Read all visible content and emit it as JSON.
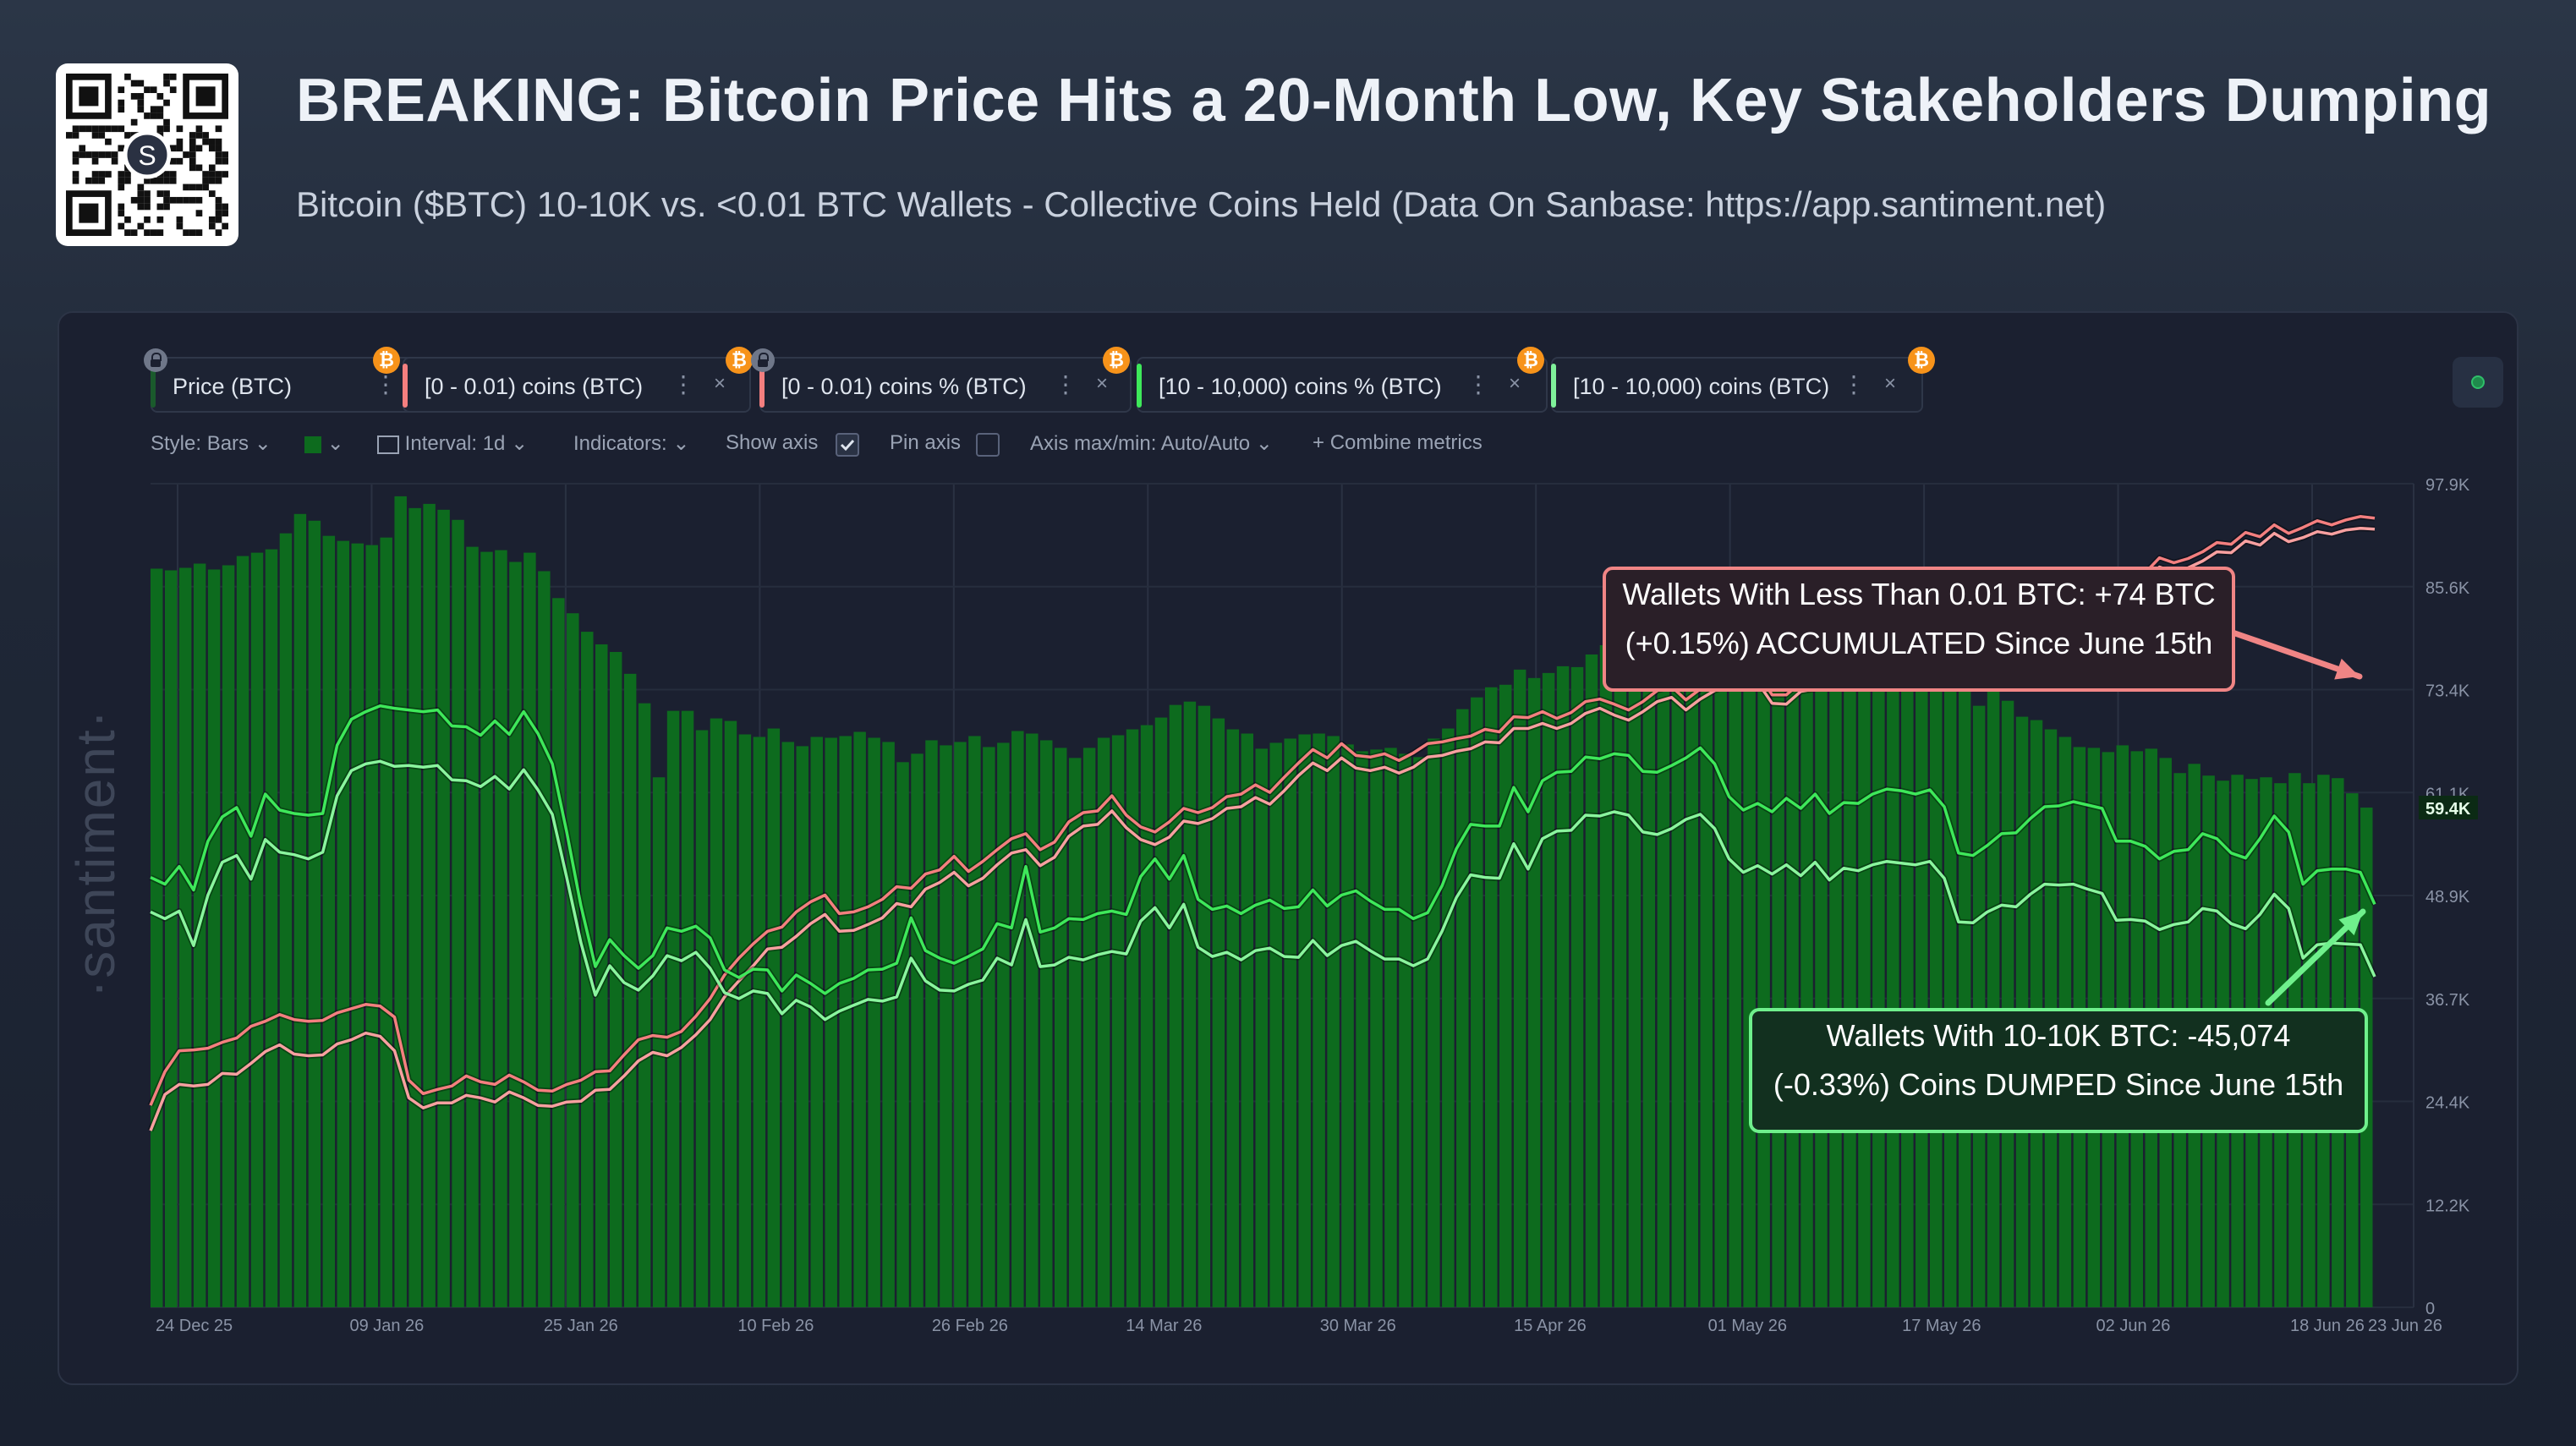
{
  "header": {
    "title": "BREAKING: Bitcoin Price Hits a 20-Month Low, Key Stakeholders Dumping",
    "subtitle": "Bitcoin ($BTC) 10-10K vs. <0.01 BTC Wallets - Collective Coins Held (Data On Sanbase: https://app.santiment.net)"
  },
  "qr_logo_letter": "S",
  "chips": [
    {
      "label": "Price (BTC)",
      "color": "#1a5a2c",
      "locked": true
    },
    {
      "label": "[0 - 0.01) coins (BTC)",
      "color": "#f47f7f",
      "locked": false
    },
    {
      "label": "[0 - 0.01) coins % (BTC)",
      "color": "#f47f7f",
      "locked": true
    },
    {
      "label": "[10 - 10,000) coins % (BTC)",
      "color": "#3ee85a",
      "locked": false
    },
    {
      "label": "[10 - 10,000) coins (BTC)",
      "color": "#7ff09a",
      "locked": false
    }
  ],
  "chip_icons": {
    "menu": "⋮",
    "close": "×",
    "btc": "₿"
  },
  "toolbar": {
    "style": "Style: Bars",
    "interval": "Interval: 1d",
    "indicators": "Indicators:",
    "show_axis": "Show axis",
    "show_axis_checked": true,
    "pin_axis": "Pin axis",
    "pin_axis_checked": false,
    "axis_maxmin": "Axis max/min: Auto/Auto",
    "combine": "Combine metrics",
    "caret": "⌄",
    "plus": "+"
  },
  "watermark": "·santiment·",
  "callouts": {
    "red": [
      "Wallets With Less Than 0.01 BTC: +74 BTC",
      "(+0.15%) ACCUMULATED Since June 15th"
    ],
    "green": [
      "Wallets With 10-10K BTC: -45,074",
      "(-0.33%) Coins DUMPED Since June 15th"
    ]
  },
  "chart_data": {
    "type": "bar",
    "x_ticks": [
      "24 Dec 25",
      "09 Jan 26",
      "25 Jan 26",
      "10 Feb 26",
      "26 Feb 26",
      "14 Mar 26",
      "30 Mar 26",
      "15 Apr 26",
      "01 May 26",
      "17 May 26",
      "02 Jun 26",
      "18 Jun 26",
      "23 Jun 26"
    ],
    "y_ticks": [
      "0",
      "12.2K",
      "24.4K",
      "36.7K",
      "48.9K",
      "61.1K",
      "73.4K",
      "85.6K",
      "97.9K"
    ],
    "ylim": [
      0,
      97900
    ],
    "current_price_label": "59.4K",
    "current_price": 59400,
    "grid": true,
    "series_colors": {
      "price": "#0d6b1e",
      "small_coins": "#f47f7f",
      "small_pct": "#f8a0a0",
      "whale_pct": "#3ee85a",
      "whale_coins": "#8af59e"
    },
    "price_values": [
      87800,
      87600,
      87900,
      88400,
      87700,
      88200,
      89300,
      89700,
      90100,
      92000,
      94300,
      93500,
      91700,
      91100,
      90800,
      90600,
      91500,
      96400,
      95000,
      95500,
      94800,
      93600,
      90400,
      89800,
      90000,
      88600,
      89700,
      87500,
      84300,
      82500,
      80300,
      78800,
      77900,
      75300,
      71800,
      63000,
      70900,
      70900,
      68600,
      70000,
      69700,
      68100,
      67800,
      68800,
      67200,
      66700,
      67800,
      67700,
      67900,
      68400,
      67700,
      67200,
      64800,
      65800,
      67400,
      66800,
      67200,
      67900,
      66600,
      67100,
      68500,
      68200,
      67400,
      66500,
      65300,
      66500,
      67700,
      68000,
      68700,
      69200,
      70100,
      71600,
      72000,
      71500,
      70000,
      68700,
      68200,
      66400,
      67100,
      67600,
      68100,
      68200,
      67900,
      66900,
      66100,
      66300,
      66500,
      65800,
      65400,
      67600,
      68800,
      71100,
      72500,
      73700,
      74000,
      75800,
      74800,
      75400,
      76200,
      76100,
      77600,
      78700,
      79700,
      80600,
      80200,
      79700,
      79000,
      79200,
      80300,
      81400,
      80800,
      80200,
      78800,
      77100,
      76900,
      77600,
      78600,
      77500,
      77900,
      76900,
      76400,
      75300,
      73800,
      74200,
      73600,
      73800,
      73700,
      71500,
      73200,
      72100,
      70200,
      69800,
      68700,
      67800,
      66600,
      66500,
      66000,
      66800,
      66100,
      66400,
      65300,
      63500,
      64600,
      63200,
      62600,
      63300,
      62800,
      63000,
      62300,
      63500,
      62300,
      63300,
      62900,
      61100,
      59400
    ],
    "small_coins_values": [
      24000,
      28000,
      30500,
      30600,
      30800,
      31500,
      32000,
      33400,
      34000,
      34800,
      34200,
      34000,
      34100,
      35000,
      35500,
      36000,
      35800,
      34500,
      27000,
      25400,
      25900,
      26300,
      27500,
      26800,
      26500,
      27600,
      26800,
      25800,
      25700,
      26500,
      27000,
      28000,
      28100,
      30000,
      31800,
      32300,
      32100,
      32800,
      34600,
      36700,
      39500,
      41500,
      43200,
      44700,
      45200,
      47000,
      48200,
      49000,
      46800,
      47000,
      47600,
      48500,
      50000,
      49800,
      51500,
      52000,
      53600,
      51800,
      53000,
      54400,
      55700,
      56300,
      54400,
      55300,
      57700,
      58800,
      59000,
      60800,
      58500,
      57100,
      56500,
      57700,
      59300,
      58800,
      59400,
      60700,
      61000,
      62100,
      61200,
      63000,
      64700,
      66300,
      65300,
      67000,
      65600,
      65400,
      65800,
      65000,
      65900,
      67000,
      67200,
      67600,
      67900,
      68700,
      68400,
      70200,
      70100,
      70800,
      70000,
      70700,
      72000,
      72300,
      71700,
      71000,
      72000,
      73300,
      73800,
      72200,
      73500,
      74500,
      75200,
      76800,
      75500,
      72800,
      72800,
      74300,
      74500,
      75500,
      74700,
      76100,
      75300,
      76800,
      75800,
      76800,
      77900,
      78600,
      77500,
      78500,
      78000,
      79800,
      80000,
      80500,
      82800,
      81900,
      84200,
      85000,
      85700,
      85900,
      87000,
      87300,
      89100,
      88500,
      89000,
      89800,
      90900,
      90700,
      92100,
      91600,
      93000,
      92000,
      92700,
      93500,
      93000,
      93600,
      94000,
      93800
    ],
    "small_pct_values": [
      21000,
      25300,
      26500,
      26300,
      26500,
      27800,
      27700,
      29000,
      30400,
      31200,
      30100,
      29900,
      30000,
      31300,
      31800,
      32600,
      32200,
      30500,
      24900,
      23700,
      24300,
      24300,
      25200,
      24900,
      24400,
      25600,
      24900,
      24000,
      23900,
      24400,
      24500,
      25800,
      25900,
      27500,
      29300,
      30300,
      29900,
      30900,
      32400,
      34200,
      36900,
      38800,
      40600,
      42600,
      42800,
      44100,
      45600,
      46700,
      44700,
      44800,
      45500,
      46300,
      48000,
      47600,
      49700,
      50500,
      51700,
      50100,
      51000,
      52600,
      54000,
      54400,
      52500,
      53500,
      56000,
      57200,
      57400,
      59000,
      57000,
      55600,
      55000,
      55900,
      57800,
      57500,
      58100,
      59300,
      59500,
      60600,
      59800,
      61400,
      63200,
      64700,
      63800,
      65300,
      64100,
      63800,
      64200,
      63500,
      64200,
      65400,
      65600,
      66100,
      66400,
      67200,
      67100,
      68800,
      68800,
      69400,
      68800,
      69400,
      70600,
      71200,
      70400,
      69800,
      70800,
      72000,
      72500,
      71000,
      72300,
      73300,
      74000,
      75600,
      74300,
      71800,
      71700,
      73200,
      73500,
      74400,
      73600,
      75000,
      74200,
      75700,
      74800,
      75700,
      76800,
      77400,
      76600,
      77400,
      77000,
      78800,
      79000,
      79500,
      81700,
      80900,
      83200,
      84000,
      84600,
      84700,
      85900,
      86200,
      88000,
      87400,
      87900,
      88700,
      89800,
      89700,
      91100,
      90600,
      92000,
      91000,
      91500,
      92200,
      91900,
      92400,
      92600,
      92500
    ],
    "whale_pct_values": [
      51100,
      50300,
      52400,
      49600,
      55400,
      58300,
      59400,
      56000,
      61000,
      59100,
      58700,
      58500,
      58700,
      66800,
      69900,
      70800,
      71500,
      71200,
      71000,
      70800,
      71000,
      69100,
      69000,
      68000,
      69700,
      68100,
      70800,
      68200,
      64600,
      56500,
      47700,
      40500,
      43700,
      41800,
      40300,
      41800,
      45100,
      44700,
      45300,
      43900,
      40100,
      39200,
      40200,
      40100,
      37600,
      39500,
      38500,
      37300,
      38500,
      39100,
      40100,
      40200,
      40900,
      46300,
      42400,
      41500,
      40900,
      41700,
      42600,
      45600,
      45100,
      52400,
      44600,
      45100,
      46200,
      46100,
      46800,
      47100,
      46700,
      51200,
      53300,
      50900,
      53700,
      48500,
      47300,
      47700,
      46800,
      47800,
      48400,
      47400,
      47600,
      49600,
      47700,
      49000,
      49500,
      48300,
      47300,
      47300,
      46200,
      46900,
      50100,
      54500,
      57400,
      57200,
      57200,
      61800,
      58900,
      62600,
      63600,
      63700,
      65400,
      65200,
      65800,
      65600,
      63700,
      63600,
      64400,
      65300,
      66500,
      64600,
      60700,
      59100,
      59900,
      58900,
      60500,
      59300,
      61000,
      58700,
      60000,
      59900,
      61000,
      61600,
      61400,
      61000,
      61500,
      59500,
      54000,
      53700,
      54900,
      56300,
      56400,
      58100,
      59500,
      59600,
      60100,
      59700,
      59300,
      55400,
      55400,
      54800,
      53300,
      54200,
      54400,
      56300,
      55700,
      54000,
      53400,
      55700,
      58400,
      56500,
      50300,
      51900,
      52100,
      52100,
      51700,
      47900
    ],
    "whale_coins_values": [
      47000,
      46200,
      47100,
      43000,
      49000,
      52900,
      53700,
      50900,
      55600,
      54100,
      53800,
      53300,
      54100,
      60800,
      63800,
      64600,
      64900,
      64300,
      64400,
      64200,
      64400,
      62700,
      62600,
      61900,
      63100,
      61600,
      63900,
      61500,
      58600,
      51100,
      43300,
      37100,
      40600,
      38600,
      37700,
      39400,
      41800,
      41200,
      42200,
      40300,
      37400,
      36700,
      37600,
      37300,
      34900,
      36500,
      35700,
      34200,
      35200,
      35900,
      36600,
      36400,
      36900,
      41500,
      38800,
      37700,
      37600,
      38400,
      38900,
      41500,
      40700,
      46100,
      40500,
      40700,
      41600,
      41300,
      41900,
      42300,
      42000,
      45900,
      47500,
      45100,
      47900,
      42800,
      41700,
      42200,
      41300,
      42400,
      42700,
      41700,
      41600,
      43600,
      41800,
      43000,
      43500,
      42400,
      41400,
      41400,
      40600,
      41400,
      44700,
      48700,
      51400,
      51100,
      51000,
      55100,
      52100,
      55700,
      56600,
      56700,
      58500,
      58400,
      58900,
      58500,
      56500,
      56200,
      56900,
      58000,
      58600,
      56900,
      53300,
      51700,
      52500,
      51500,
      52600,
      51300,
      52900,
      50800,
      52200,
      51900,
      52600,
      53000,
      52800,
      52600,
      53000,
      51000,
      45800,
      45700,
      47000,
      47800,
      47600,
      49100,
      50300,
      50200,
      50300,
      49700,
      49200,
      46000,
      46100,
      45900,
      44900,
      45500,
      45800,
      47400,
      47100,
      45600,
      45000,
      46700,
      49100,
      47400,
      41500,
      43100,
      43300,
      43200,
      43100,
      39300
    ]
  }
}
